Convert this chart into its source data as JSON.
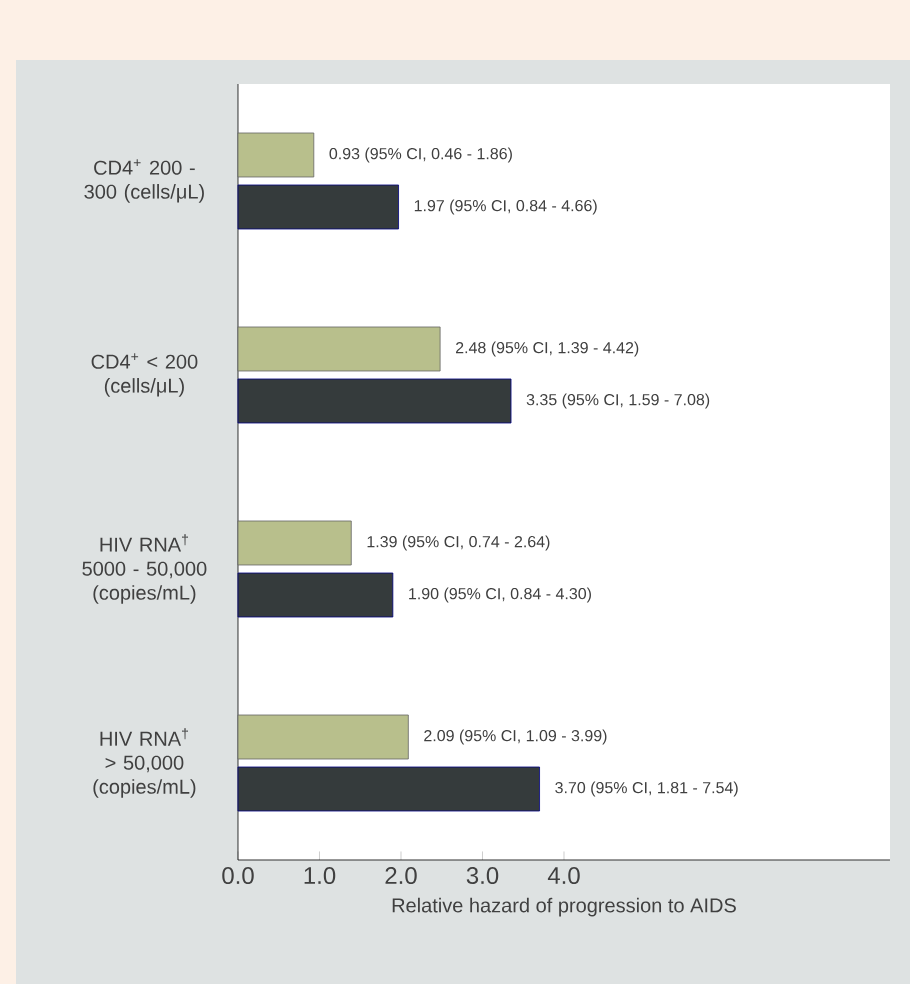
{
  "chart_data": {
    "type": "bar",
    "orientation": "horizontal",
    "xlabel": "Relative hazard of progression to AIDS",
    "categories": [
      "CD4$^{+}$ 200 - 300 (cells/μL)",
      "CD4$^{+}$ < 200 (cells/μL)",
      "HIV RNA$^{†}$ 5000 - 50,000 (copies/mL)",
      "HIV RNA$^{†}$ > 50,000 (copies/mL)"
    ],
    "series": [
      {
        "color": "#b8bf8c",
        "values": [
          0.93,
          2.48,
          1.39,
          2.09
        ],
        "value_labels": [
          "0.93 (95% CI, 0.46 - 1.86)",
          "2.48 (95% CI, 1.39 - 4.42)",
          "1.39 (95% CI, 0.74 - 2.64)",
          "2.09 (95% CI, 1.09 - 3.99)"
        ]
      },
      {
        "color": "#353b3c",
        "values": [
          1.97,
          3.35,
          1.9,
          3.7
        ],
        "value_labels": [
          "1.97 (95% CI, 0.84 - 4.66)",
          "3.35 (95% CI, 1.59 - 7.08)",
          "1.90 (95% CI, 0.84 - 4.30)",
          "3.70 (95% CI, 1.81 - 7.54)"
        ]
      }
    ],
    "xlim": [
      0,
      8
    ],
    "xticks": [
      {
        "value": 0,
        "label": "0.0"
      },
      {
        "value": 1,
        "label": "1.0"
      },
      {
        "value": 2,
        "label": "2.0"
      },
      {
        "value": 3,
        "label": "3.0"
      },
      {
        "value": 4,
        "label": "4.0"
      }
    ],
    "grid": false
  }
}
